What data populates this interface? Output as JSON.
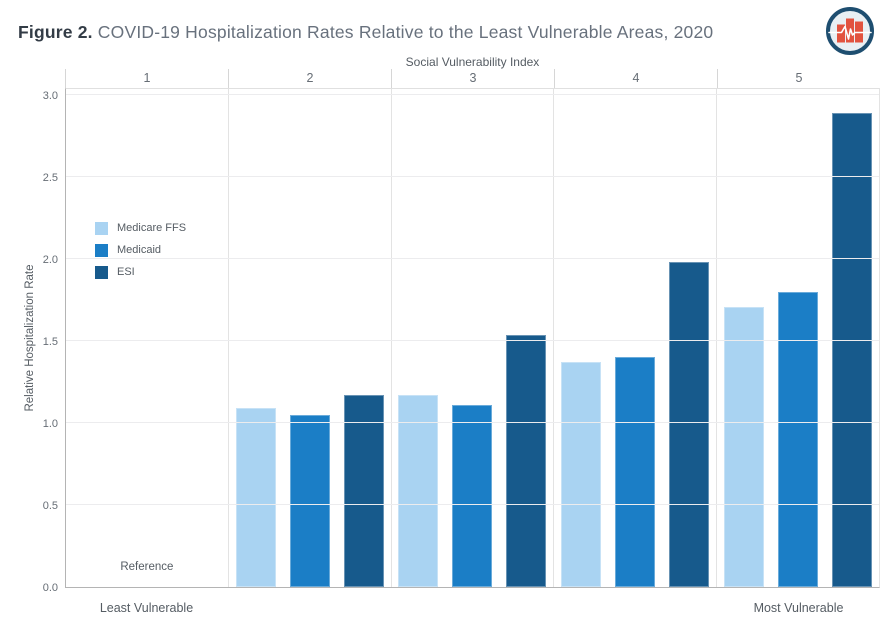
{
  "title": {
    "prefix": "Figure 2.",
    "rest": " COVID-19 Hospitalization Rates Relative to the Least Vulnerable Areas, 2020"
  },
  "logo": {
    "name": "pulse-bar-chart-logo"
  },
  "chart_data": {
    "type": "bar",
    "title": "Figure 2. COVID-19 Hospitalization Rates Relative to the Least Vulnerable Areas, 2020",
    "top_axis_title": "Social Vulnerability Index",
    "categories": [
      "1",
      "2",
      "3",
      "4",
      "5"
    ],
    "series": [
      {
        "name": "Medicare FFS",
        "color": "#A9D3F2",
        "values": [
          null,
          1.09,
          1.17,
          1.37,
          1.71
        ]
      },
      {
        "name": "Medicaid",
        "color": "#1B7EC6",
        "values": [
          null,
          1.05,
          1.11,
          1.4,
          1.8
        ]
      },
      {
        "name": "ESI",
        "color": "#175A8C",
        "values": [
          null,
          1.17,
          1.54,
          1.98,
          2.89
        ]
      }
    ],
    "reference_note": {
      "category": "1",
      "label": "Reference"
    },
    "xlabel": "",
    "ylabel": "Relative Hospitalization Rate",
    "yticks": [
      0.0,
      0.5,
      1.0,
      1.5,
      2.0,
      2.5,
      3.0
    ],
    "ylim": [
      0,
      3.05
    ],
    "x_end_labels": {
      "left": "Least Vulnerable",
      "right": "Most Vulnerable"
    },
    "grid": "horizontal-light",
    "legend_position": "inside-upper-left"
  }
}
